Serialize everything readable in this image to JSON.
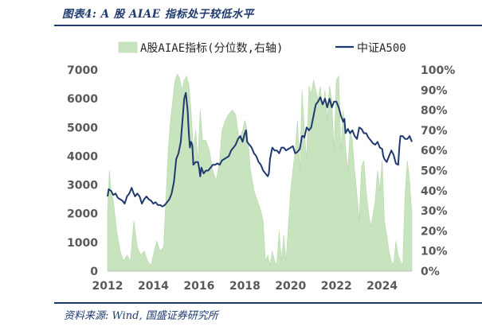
{
  "header": {
    "title": "图表4:  A 股 AIAE 指标处于较低水平"
  },
  "footer": {
    "source": "资料来源:  Wind, 国盛证券研究所"
  },
  "colors": {
    "series_line": "#1f3a6e",
    "series_area": "#c8e4bf",
    "accent": "#1f3a6e"
  },
  "chart_data": {
    "type": "line",
    "title": "图表4:  A 股 AIAE 指标处于较低水平",
    "legend_position": "top",
    "grid": false,
    "x_ticks": [
      "2012",
      "2014",
      "2016",
      "2018",
      "2020",
      "2022",
      "2024"
    ],
    "xlim": [
      2012.0,
      2025.3
    ],
    "y_left": {
      "ticks": [
        "0",
        "1000",
        "2000",
        "3000",
        "4000",
        "5000",
        "6000",
        "7000"
      ],
      "lim": [
        0,
        7000
      ]
    },
    "y_right": {
      "ticks": [
        "0%",
        "10%",
        "20%",
        "30%",
        "40%",
        "50%",
        "60%",
        "70%",
        "80%",
        "90%",
        "100%"
      ],
      "lim": [
        0,
        100
      ]
    },
    "series": [
      {
        "name": "A股AIAE指标(分位数,右轴)",
        "type": "area",
        "axis": "right",
        "x": [
          2012.0,
          2012.08,
          2012.15,
          2012.25,
          2012.4,
          2012.55,
          2012.7,
          2012.85,
          2013.0,
          2013.15,
          2013.3,
          2013.45,
          2013.6,
          2013.75,
          2013.9,
          2014.0,
          2014.15,
          2014.3,
          2014.45,
          2014.55,
          2014.65,
          2014.75,
          2014.85,
          2014.95,
          2015.05,
          2015.15,
          2015.25,
          2015.35,
          2015.45,
          2015.55,
          2015.65,
          2015.75,
          2015.85,
          2015.95,
          2016.05,
          2016.15,
          2016.3,
          2016.45,
          2016.6,
          2016.75,
          2016.9,
          2017.0,
          2017.15,
          2017.3,
          2017.45,
          2017.6,
          2017.75,
          2017.9,
          2018.0,
          2018.1,
          2018.25,
          2018.4,
          2018.55,
          2018.7,
          2018.8,
          2018.9,
          2019.0,
          2019.1,
          2019.2,
          2019.3,
          2019.4,
          2019.5,
          2019.6,
          2019.7,
          2019.8,
          2019.9,
          2020.0,
          2020.1,
          2020.2,
          2020.3,
          2020.4,
          2020.5,
          2020.6,
          2020.7,
          2020.8,
          2020.9,
          2021.0,
          2021.1,
          2021.2,
          2021.3,
          2021.4,
          2021.5,
          2021.6,
          2021.7,
          2021.8,
          2021.9,
          2022.0,
          2022.1,
          2022.2,
          2022.3,
          2022.4,
          2022.5,
          2022.6,
          2022.7,
          2022.8,
          2022.9,
          2023.0,
          2023.1,
          2023.2,
          2023.3,
          2023.4,
          2023.5,
          2023.6,
          2023.7,
          2023.8,
          2023.9,
          2024.0,
          2024.1,
          2024.2,
          2024.3,
          2024.4,
          2024.5,
          2024.6,
          2024.7,
          2024.8,
          2024.9,
          2025.0,
          2025.1,
          2025.2,
          2025.3
        ],
        "values": [
          30,
          50,
          40,
          35,
          20,
          10,
          5,
          8,
          5,
          25,
          12,
          8,
          10,
          5,
          3,
          8,
          15,
          10,
          12,
          35,
          60,
          75,
          85,
          95,
          98,
          96,
          90,
          95,
          97,
          93,
          80,
          60,
          70,
          55,
          80,
          65,
          65,
          60,
          50,
          45,
          55,
          70,
          75,
          78,
          80,
          78,
          65,
          70,
          75,
          70,
          50,
          40,
          35,
          30,
          25,
          5,
          8,
          3,
          10,
          5,
          3,
          20,
          5,
          18,
          5,
          22,
          40,
          50,
          60,
          75,
          50,
          90,
          70,
          55,
          92,
          88,
          95,
          90,
          85,
          92,
          80,
          90,
          75,
          92,
          85,
          60,
          95,
          97,
          60,
          80,
          62,
          50,
          70,
          65,
          50,
          38,
          25,
          52,
          55,
          40,
          30,
          22,
          28,
          35,
          50,
          40,
          55,
          25,
          18,
          10,
          5,
          3,
          15,
          8,
          5,
          3,
          38,
          55,
          45,
          28
        ]
      },
      {
        "name": "中证A500",
        "type": "line",
        "axis": "left",
        "x": [
          2012.0,
          2012.05,
          2012.15,
          2012.25,
          2012.35,
          2012.45,
          2012.55,
          2012.65,
          2012.75,
          2012.85,
          2012.95,
          2013.05,
          2013.12,
          2013.2,
          2013.3,
          2013.4,
          2013.5,
          2013.6,
          2013.7,
          2013.8,
          2013.9,
          2014.0,
          2014.1,
          2014.2,
          2014.3,
          2014.4,
          2014.5,
          2014.6,
          2014.7,
          2014.8,
          2014.9,
          2015.0,
          2015.1,
          2015.2,
          2015.3,
          2015.35,
          2015.42,
          2015.5,
          2015.55,
          2015.6,
          2015.65,
          2015.7,
          2015.75,
          2015.85,
          2015.95,
          2016.0,
          2016.05,
          2016.1,
          2016.2,
          2016.3,
          2016.4,
          2016.5,
          2016.6,
          2016.7,
          2016.8,
          2016.9,
          2017.0,
          2017.1,
          2017.2,
          2017.3,
          2017.4,
          2017.5,
          2017.6,
          2017.7,
          2017.8,
          2017.9,
          2018.0,
          2018.05,
          2018.1,
          2018.2,
          2018.3,
          2018.4,
          2018.5,
          2018.6,
          2018.7,
          2018.8,
          2018.9,
          2019.0,
          2019.05,
          2019.1,
          2019.2,
          2019.3,
          2019.4,
          2019.5,
          2019.6,
          2019.7,
          2019.8,
          2019.9,
          2020.0,
          2020.1,
          2020.2,
          2020.3,
          2020.4,
          2020.5,
          2020.55,
          2020.6,
          2020.7,
          2020.8,
          2020.9,
          2021.0,
          2021.05,
          2021.1,
          2021.2,
          2021.3,
          2021.4,
          2021.5,
          2021.6,
          2021.7,
          2021.8,
          2021.9,
          2022.0,
          2022.1,
          2022.2,
          2022.3,
          2022.35,
          2022.4,
          2022.5,
          2022.6,
          2022.7,
          2022.8,
          2022.9,
          2023.0,
          2023.1,
          2023.2,
          2023.3,
          2023.4,
          2023.5,
          2023.6,
          2023.7,
          2023.8,
          2023.9,
          2024.0,
          2024.05,
          2024.1,
          2024.2,
          2024.3,
          2024.4,
          2024.5,
          2024.6,
          2024.7,
          2024.75,
          2024.8,
          2024.9,
          2025.0,
          2025.1,
          2025.2,
          2025.3
        ],
        "values": [
          2600,
          2850,
          2800,
          2650,
          2700,
          2550,
          2500,
          2450,
          2350,
          2600,
          2700,
          2900,
          2750,
          2600,
          2700,
          2600,
          2350,
          2500,
          2600,
          2500,
          2450,
          2350,
          2400,
          2300,
          2300,
          2250,
          2300,
          2400,
          2500,
          2700,
          3100,
          3900,
          4100,
          4500,
          5500,
          6000,
          6200,
          5600,
          4800,
          4300,
          4500,
          4400,
          3700,
          3800,
          3800,
          3600,
          3300,
          3600,
          3400,
          3500,
          3500,
          3600,
          3700,
          3700,
          3750,
          3700,
          3850,
          3900,
          3950,
          4000,
          4200,
          4300,
          4400,
          4600,
          4700,
          4500,
          4800,
          4900,
          4500,
          4400,
          4300,
          4100,
          4000,
          3800,
          3700,
          3500,
          3400,
          3300,
          3400,
          3900,
          4300,
          4200,
          4200,
          4100,
          4300,
          4300,
          4200,
          4250,
          4300,
          4350,
          4100,
          4150,
          4250,
          4700,
          4700,
          4650,
          5000,
          4900,
          5000,
          5400,
          5600,
          5800,
          5900,
          6050,
          5800,
          6000,
          5700,
          6000,
          5700,
          5900,
          5900,
          5700,
          5400,
          5200,
          5300,
          4800,
          4950,
          4800,
          4900,
          4700,
          4600,
          5000,
          4950,
          4800,
          4800,
          4650,
          4550,
          4450,
          4400,
          4500,
          4300,
          4250,
          4000,
          3900,
          3800,
          4000,
          4200,
          4050,
          3750,
          3700,
          4300,
          4700,
          4700,
          4600,
          4600,
          4700,
          4500
        ]
      }
    ]
  }
}
